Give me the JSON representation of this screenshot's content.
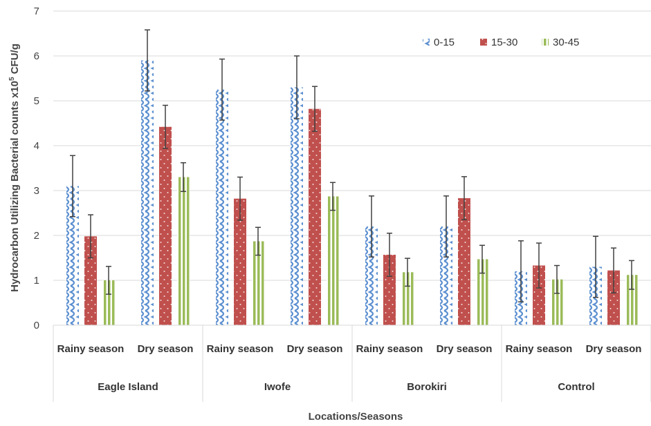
{
  "chart_data": {
    "type": "bar",
    "xlabel": "Locations/Seasons",
    "ylabel_main": "Hydrocarbon Utilizing Bacterial counts x10",
    "ylabel_sup": "5",
    "ylabel_tail": " CFU/g",
    "ylim": [
      0,
      7
    ],
    "yticks": [
      "0",
      "1",
      "2",
      "3",
      "4",
      "5",
      "6",
      "7"
    ],
    "legend_position": "top-right",
    "groups": [
      "Eagle Island",
      "Iwofe",
      "Borokiri",
      "Control"
    ],
    "categories": [
      "Rainy season",
      "Dry season",
      "Rainy season",
      "Dry season",
      "Rainy season",
      "Dry season",
      "Rainy season",
      "Dry season"
    ],
    "series": [
      {
        "name": "0-15",
        "color": "#5b8fd0",
        "pattern": "wave",
        "values": [
          3.1,
          5.9,
          5.25,
          5.3,
          2.2,
          2.2,
          1.2,
          1.3
        ],
        "errors": [
          0.68,
          0.68,
          0.68,
          0.7,
          0.68,
          0.68,
          0.68,
          0.68
        ]
      },
      {
        "name": "15-30",
        "color": "#c0504d",
        "pattern": "dots",
        "values": [
          1.98,
          4.42,
          2.82,
          4.82,
          1.57,
          2.83,
          1.33,
          1.22
        ],
        "errors": [
          0.48,
          0.48,
          0.48,
          0.5,
          0.48,
          0.48,
          0.5,
          0.5
        ]
      },
      {
        "name": "30-45",
        "color": "#9bbb59",
        "pattern": "vstripes",
        "values": [
          1.0,
          3.3,
          1.87,
          2.87,
          1.18,
          1.47,
          1.02,
          1.12
        ],
        "errors": [
          0.31,
          0.32,
          0.31,
          0.31,
          0.31,
          0.31,
          0.31,
          0.32
        ]
      }
    ]
  }
}
